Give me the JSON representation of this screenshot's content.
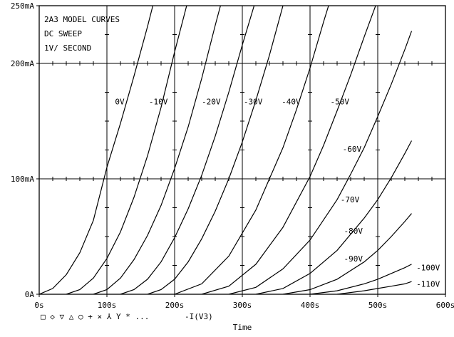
{
  "chart_data": {
    "type": "line",
    "annotation_lines": [
      "2A3 MODEL CURVES",
      "DC SWEEP",
      "1V/ SECOND"
    ],
    "xlabel": "Time",
    "xlim": [
      0,
      600
    ],
    "ylim": [
      0,
      250
    ],
    "x_ticks": [
      {
        "value": 0,
        "label": "0s"
      },
      {
        "value": 100,
        "label": "100s"
      },
      {
        "value": 200,
        "label": "200s"
      },
      {
        "value": 300,
        "label": "300s"
      },
      {
        "value": 400,
        "label": "400s"
      },
      {
        "value": 500,
        "label": "500s"
      },
      {
        "value": 600,
        "label": "600s"
      }
    ],
    "y_ticks": [
      {
        "value": 0,
        "label": "0A"
      },
      {
        "value": 100,
        "label": "100mA"
      },
      {
        "value": 200,
        "label": "200mA"
      },
      {
        "value": 250,
        "label": "250mA"
      }
    ],
    "grid": true,
    "legend": {
      "symbols": "□ ◇ ▽ △ ○ + × ⅄ Y * ...",
      "trace": "-I(V3)"
    },
    "series": [
      {
        "name": "0V",
        "label_at": [
          112,
          167
        ],
        "points": [
          [
            0,
            0
          ],
          [
            20,
            5
          ],
          [
            40,
            17
          ],
          [
            60,
            36
          ],
          [
            80,
            64
          ],
          [
            100,
            110
          ],
          [
            120,
            148
          ],
          [
            140,
            189
          ],
          [
            160,
            232
          ],
          [
            170,
            255
          ]
        ]
      },
      {
        "name": "-10V",
        "label_at": [
          162,
          167
        ],
        "points": [
          [
            40,
            0
          ],
          [
            60,
            4
          ],
          [
            80,
            14
          ],
          [
            100,
            31
          ],
          [
            120,
            54
          ],
          [
            140,
            84
          ],
          [
            160,
            120
          ],
          [
            180,
            162
          ],
          [
            200,
            210
          ],
          [
            220,
            255
          ]
        ]
      },
      {
        "name": "-20V",
        "label_at": [
          240,
          167
        ],
        "points": [
          [
            80,
            0
          ],
          [
            100,
            4
          ],
          [
            120,
            14
          ],
          [
            140,
            30
          ],
          [
            160,
            51
          ],
          [
            180,
            77
          ],
          [
            200,
            109
          ],
          [
            220,
            145
          ],
          [
            240,
            187
          ],
          [
            260,
            233
          ],
          [
            270,
            255
          ]
        ]
      },
      {
        "name": "-30V",
        "label_at": [
          302,
          167
        ],
        "points": [
          [
            120,
            0
          ],
          [
            140,
            4
          ],
          [
            160,
            13
          ],
          [
            180,
            28
          ],
          [
            200,
            49
          ],
          [
            220,
            74
          ],
          [
            240,
            103
          ],
          [
            260,
            137
          ],
          [
            280,
            175
          ],
          [
            300,
            216
          ],
          [
            320,
            255
          ]
        ]
      },
      {
        "name": "-40V",
        "label_at": [
          358,
          167
        ],
        "points": [
          [
            160,
            0
          ],
          [
            180,
            4
          ],
          [
            200,
            13
          ],
          [
            220,
            28
          ],
          [
            240,
            48
          ],
          [
            260,
            72
          ],
          [
            280,
            100
          ],
          [
            300,
            132
          ],
          [
            320,
            168
          ],
          [
            340,
            207
          ],
          [
            360,
            250
          ],
          [
            362,
            255
          ]
        ]
      },
      {
        "name": "-50V",
        "label_at": [
          430,
          167
        ],
        "points": [
          [
            200,
            0
          ],
          [
            240,
            9
          ],
          [
            280,
            33
          ],
          [
            320,
            73
          ],
          [
            360,
            127
          ],
          [
            380,
            160
          ],
          [
            400,
            196
          ],
          [
            420,
            236
          ],
          [
            430,
            255
          ]
        ]
      },
      {
        "name": "-60V",
        "label_at": [
          448,
          126
        ],
        "points": [
          [
            240,
            0
          ],
          [
            280,
            7
          ],
          [
            320,
            26
          ],
          [
            360,
            58
          ],
          [
            400,
            102
          ],
          [
            420,
            129
          ],
          [
            440,
            159
          ],
          [
            460,
            190
          ],
          [
            480,
            223
          ],
          [
            500,
            255
          ]
        ]
      },
      {
        "name": "-70V",
        "label_at": [
          445,
          82
        ],
        "points": [
          [
            280,
            0
          ],
          [
            320,
            6
          ],
          [
            360,
            22
          ],
          [
            400,
            47
          ],
          [
            440,
            82
          ],
          [
            460,
            104
          ],
          [
            480,
            127
          ],
          [
            500,
            154
          ],
          [
            520,
            182
          ],
          [
            540,
            212
          ],
          [
            550,
            228
          ]
        ]
      },
      {
        "name": "-80V",
        "label_at": [
          450,
          55
        ],
        "points": [
          [
            320,
            0
          ],
          [
            360,
            5
          ],
          [
            400,
            18
          ],
          [
            440,
            38
          ],
          [
            480,
            66
          ],
          [
            500,
            82
          ],
          [
            520,
            101
          ],
          [
            540,
            122
          ],
          [
            550,
            133
          ]
        ]
      },
      {
        "name": "-90V",
        "label_at": [
          450,
          31
        ],
        "points": [
          [
            360,
            0
          ],
          [
            400,
            4
          ],
          [
            440,
            13
          ],
          [
            480,
            28
          ],
          [
            500,
            38
          ],
          [
            520,
            50
          ],
          [
            540,
            63
          ],
          [
            550,
            70
          ]
        ]
      },
      {
        "name": "-100V",
        "label_at": [
          557,
          23
        ],
        "points": [
          [
            400,
            0
          ],
          [
            440,
            3
          ],
          [
            480,
            9
          ],
          [
            500,
            13
          ],
          [
            520,
            18
          ],
          [
            540,
            23
          ],
          [
            550,
            26
          ]
        ]
      },
      {
        "name": "-110V",
        "label_at": [
          557,
          9
        ],
        "points": [
          [
            440,
            0
          ],
          [
            480,
            3
          ],
          [
            500,
            5
          ],
          [
            520,
            7
          ],
          [
            540,
            9
          ],
          [
            550,
            11
          ]
        ]
      }
    ]
  }
}
